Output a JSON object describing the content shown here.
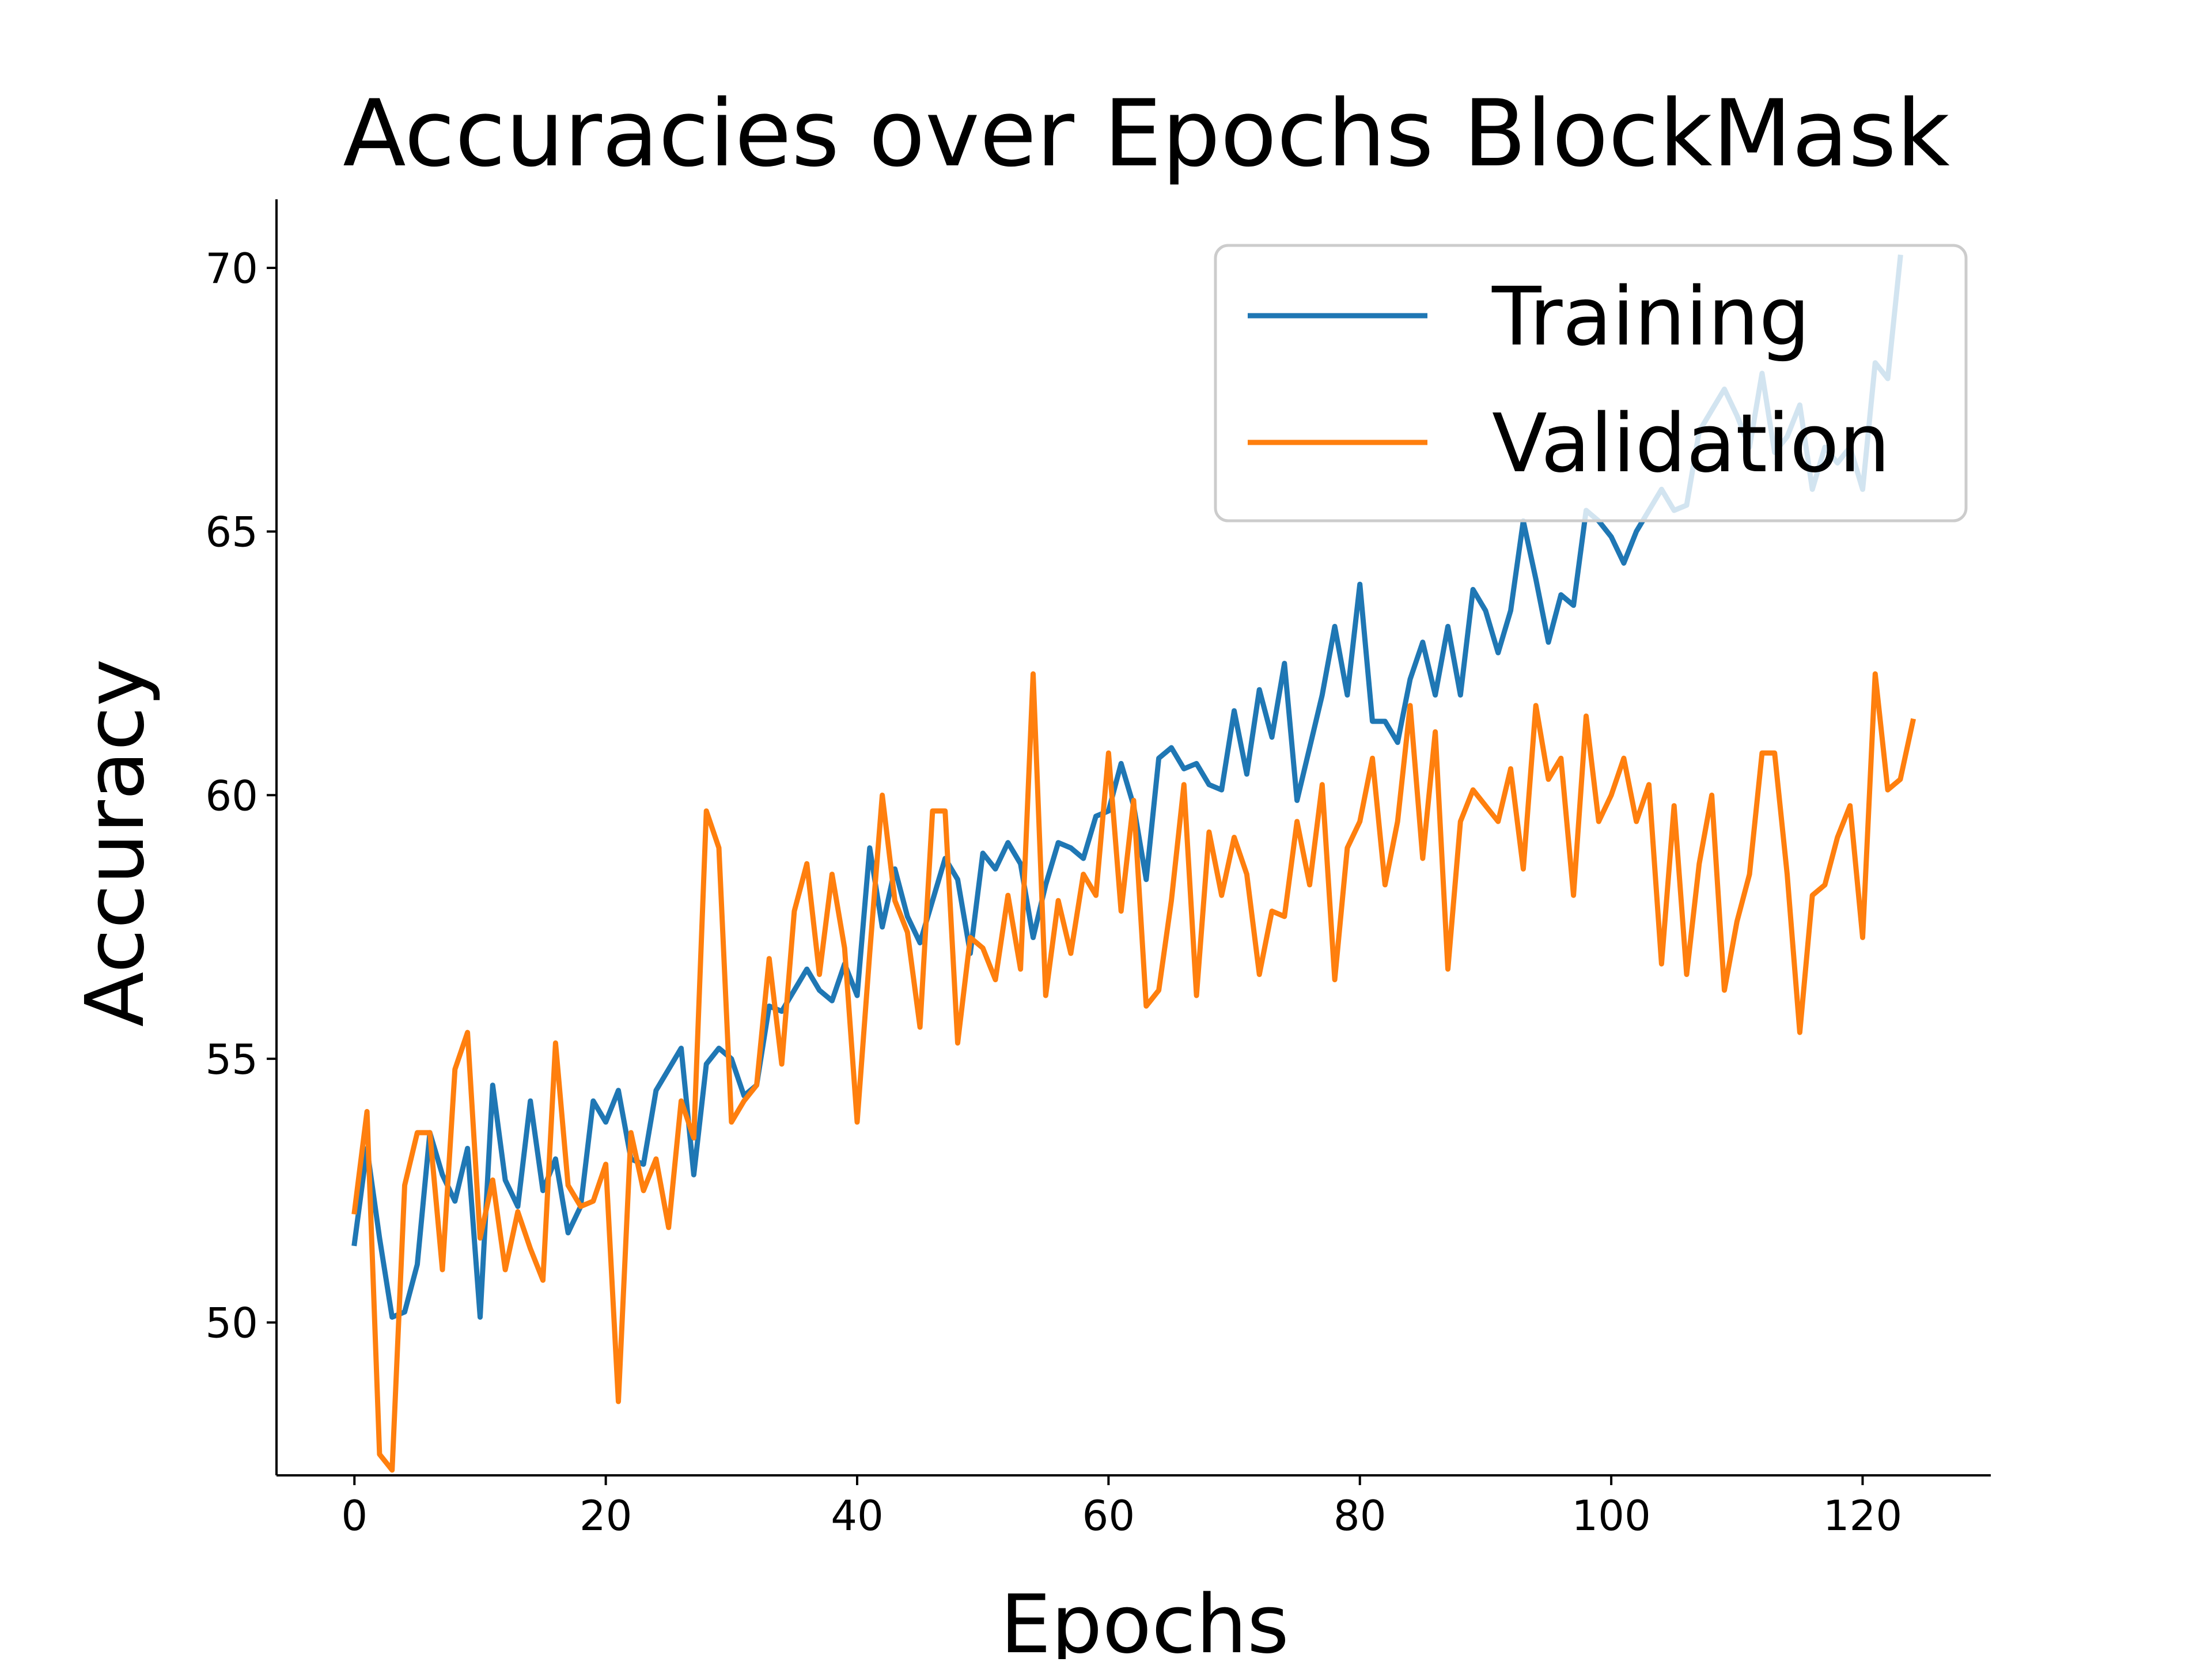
{
  "chart_data": {
    "type": "line",
    "title": "Accuracies over Epochs BlockMask",
    "xlabel": "Epochs",
    "ylabel": "Accuracy",
    "xlim": [
      -6.2,
      130.2
    ],
    "ylim": [
      47.1,
      71.3
    ],
    "xticks": [
      0,
      20,
      40,
      60,
      80,
      100,
      120
    ],
    "yticks": [
      50,
      55,
      60,
      65,
      70
    ],
    "grid": false,
    "legend": "upper right",
    "series": [
      {
        "name": "Training",
        "color": "#1f77b4",
        "values": [
          51.5,
          53.3,
          51.6,
          50.1,
          50.2,
          51.1,
          53.6,
          52.8,
          52.3,
          53.3,
          50.1,
          54.5,
          52.7,
          52.2,
          54.2,
          52.5,
          53.1,
          51.7,
          52.2,
          54.2,
          53.8,
          54.4,
          53.1,
          53.0,
          54.4,
          54.8,
          55.2,
          52.8,
          54.9,
          55.2,
          55.0,
          54.3,
          54.5,
          56.0,
          55.9,
          56.3,
          56.7,
          56.3,
          56.1,
          56.8,
          56.2,
          59.0,
          57.5,
          58.6,
          57.7,
          57.2,
          58.0,
          58.8,
          58.4,
          57.0,
          58.9,
          58.6,
          59.1,
          58.7,
          57.3,
          58.3,
          59.1,
          59.0,
          58.8,
          59.6,
          59.7,
          60.6,
          59.8,
          58.4,
          60.7,
          60.9,
          60.5,
          60.6,
          60.2,
          60.1,
          61.6,
          60.4,
          62.0,
          61.1,
          62.5,
          59.9,
          60.9,
          61.9,
          63.2,
          61.9,
          64.0,
          61.4,
          61.4,
          61.0,
          62.2,
          62.9,
          61.9,
          63.2,
          61.9,
          63.9,
          63.5,
          62.7,
          63.5,
          65.2,
          64.1,
          62.9,
          63.8,
          63.6,
          65.4,
          65.2,
          64.9,
          64.4,
          65.0,
          65.4,
          65.8,
          65.4,
          65.5,
          66.9,
          67.3,
          67.7,
          67.2,
          66.6,
          68.0,
          66.5,
          66.8,
          67.4,
          65.8,
          66.6,
          66.3,
          66.6,
          65.8,
          68.2,
          67.9,
          70.2
        ]
      },
      {
        "name": "Validation",
        "color": "#ff7f0e",
        "values": [
          52.1,
          54.0,
          47.5,
          47.2,
          52.6,
          53.6,
          53.6,
          51.0,
          54.8,
          55.5,
          51.6,
          52.7,
          51.0,
          52.1,
          51.4,
          50.8,
          55.3,
          52.6,
          52.2,
          52.3,
          53.0,
          48.5,
          53.6,
          52.5,
          53.1,
          51.8,
          54.2,
          53.5,
          59.7,
          59.0,
          53.8,
          54.2,
          54.5,
          56.9,
          54.9,
          57.8,
          58.7,
          56.6,
          58.5,
          57.1,
          53.8,
          57.0,
          60.0,
          58.0,
          57.4,
          55.6,
          59.7,
          59.7,
          55.3,
          57.3,
          57.1,
          56.5,
          58.1,
          56.7,
          62.3,
          56.2,
          58.0,
          57.0,
          58.5,
          58.1,
          60.8,
          57.8,
          59.9,
          56.0,
          56.3,
          58.0,
          60.2,
          56.2,
          59.3,
          58.1,
          59.2,
          58.5,
          56.6,
          57.8,
          57.7,
          59.5,
          58.3,
          60.2,
          56.5,
          59.0,
          59.5,
          60.7,
          58.3,
          59.5,
          61.7,
          58.8,
          61.2,
          56.7,
          59.5,
          60.1,
          59.8,
          59.5,
          60.5,
          58.6,
          61.7,
          60.3,
          60.7,
          58.1,
          61.5,
          59.5,
          60.0,
          60.7,
          59.5,
          60.2,
          56.8,
          59.8,
          56.6,
          58.7,
          60.0,
          56.3,
          57.6,
          58.5,
          60.8,
          60.8,
          58.5,
          55.5,
          58.1,
          58.3,
          59.2,
          59.8,
          57.3,
          62.3,
          60.1,
          60.3,
          61.4
        ]
      }
    ]
  }
}
